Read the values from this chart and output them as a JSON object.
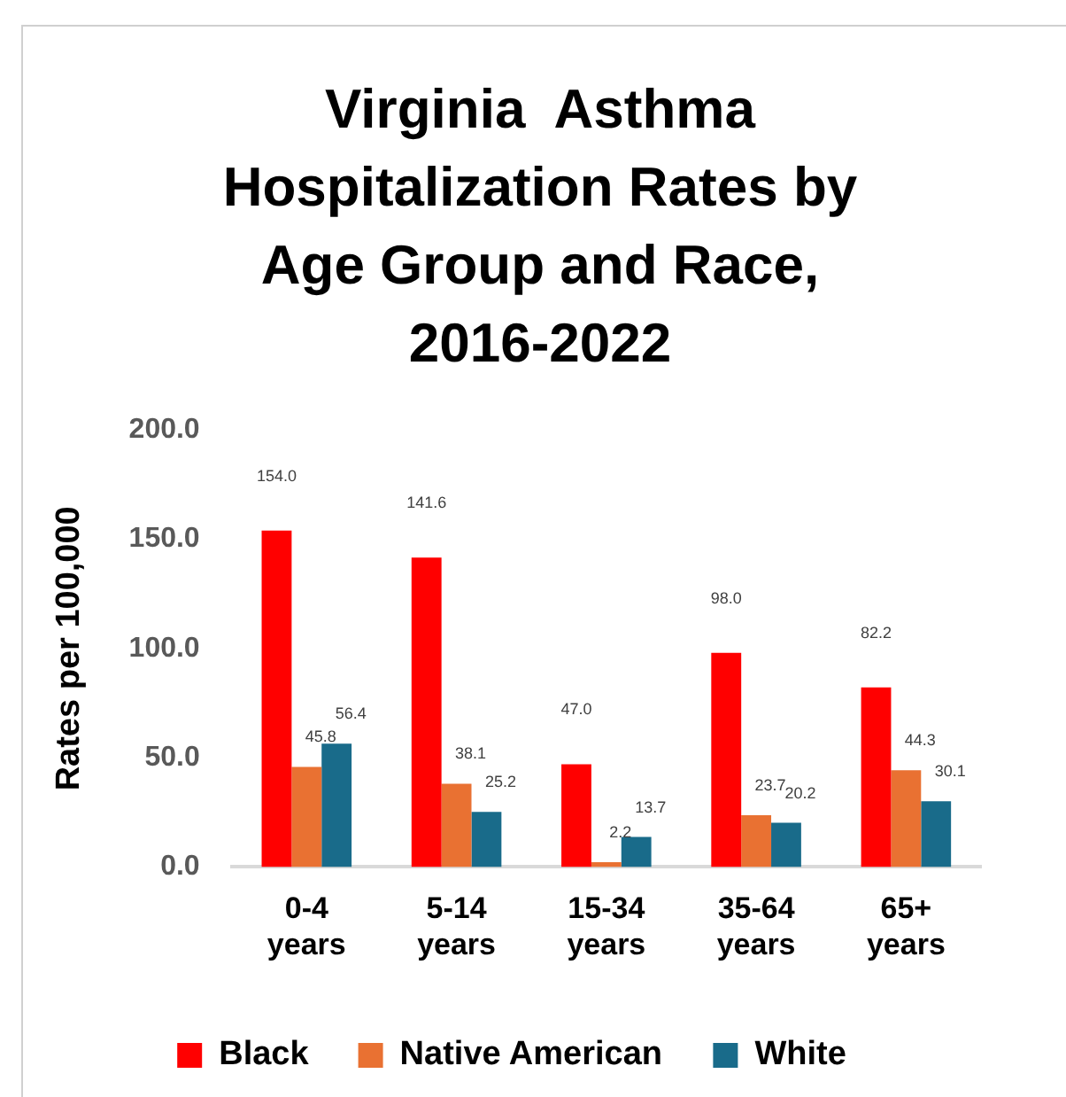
{
  "chart_data": {
    "type": "bar",
    "title": "Virginia  Asthma Hospitalization Rates by Age Group and Race, 2016-2022",
    "ylabel": "Rates per 100,000",
    "categories": [
      "0-4 years",
      "5-14 years",
      "15-34 years",
      "35-64 years",
      "65+ years"
    ],
    "series": [
      {
        "name": "Black",
        "color": "#ff0000",
        "values": [
          154.0,
          141.6,
          47.0,
          98.0,
          82.2
        ],
        "value_labels": [
          "154.0",
          "141.6",
          "47.0",
          "98.0",
          "82.2"
        ]
      },
      {
        "name": "Native American",
        "color": "#e97132",
        "values": [
          45.8,
          38.1,
          2.2,
          23.7,
          44.3
        ],
        "value_labels": [
          "45.8",
          "38.1",
          "2.2",
          "23.7",
          "44.3"
        ]
      },
      {
        "name": "White",
        "color": "#196b8a",
        "values": [
          56.4,
          25.2,
          13.7,
          20.2,
          30.1
        ],
        "value_labels": [
          "56.4",
          "25.2",
          "13.7",
          "20.2",
          "30.1"
        ]
      }
    ],
    "ylim": [
      0,
      200
    ],
    "yticks": [
      {
        "value": 0,
        "label": "0.0"
      },
      {
        "value": 50,
        "label": "50.0"
      },
      {
        "value": 100,
        "label": "100.0"
      },
      {
        "value": 150,
        "label": "150.0"
      },
      {
        "value": 200,
        "label": "200.0"
      }
    ],
    "grid": false,
    "legend": "bottom"
  }
}
